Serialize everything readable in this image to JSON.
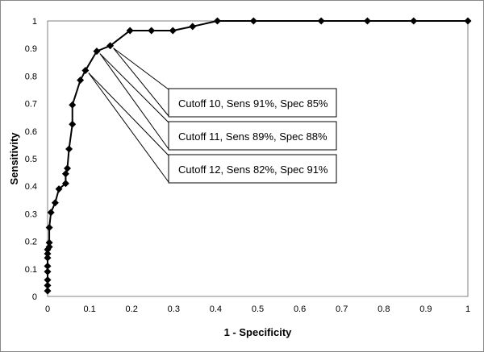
{
  "chart_data": {
    "type": "line",
    "title": "",
    "xlabel": "1 - Specificity",
    "ylabel": "Sensitivity",
    "xlim": [
      0,
      1
    ],
    "ylim": [
      0,
      1
    ],
    "x_ticks": [
      "0",
      "0.1",
      "0.2",
      "0.3",
      "0.4",
      "0.5",
      "0.6",
      "0.7",
      "0.8",
      "0.9",
      "1"
    ],
    "y_ticks": [
      "0",
      "0.1",
      "0.2",
      "0.3",
      "0.4",
      "0.5",
      "0.6",
      "0.7",
      "0.8",
      "0.9",
      "1"
    ],
    "grid": false,
    "legend": "none",
    "line_color": "#000000",
    "marker": "diamond",
    "points": [
      {
        "x": 0.0,
        "y": 0.02
      },
      {
        "x": 0.0,
        "y": 0.04
      },
      {
        "x": 0.0,
        "y": 0.06
      },
      {
        "x": 0.0,
        "y": 0.09
      },
      {
        "x": 0.0,
        "y": 0.11
      },
      {
        "x": 0.0,
        "y": 0.14
      },
      {
        "x": 0.0,
        "y": 0.155
      },
      {
        "x": 0.0,
        "y": 0.17
      },
      {
        "x": 0.004,
        "y": 0.18
      },
      {
        "x": 0.004,
        "y": 0.195
      },
      {
        "x": 0.004,
        "y": 0.25
      },
      {
        "x": 0.008,
        "y": 0.305
      },
      {
        "x": 0.018,
        "y": 0.34
      },
      {
        "x": 0.027,
        "y": 0.39
      },
      {
        "x": 0.043,
        "y": 0.41
      },
      {
        "x": 0.043,
        "y": 0.445
      },
      {
        "x": 0.047,
        "y": 0.465
      },
      {
        "x": 0.051,
        "y": 0.535
      },
      {
        "x": 0.059,
        "y": 0.625
      },
      {
        "x": 0.059,
        "y": 0.695
      },
      {
        "x": 0.078,
        "y": 0.785
      },
      {
        "x": 0.09,
        "y": 0.82
      },
      {
        "x": 0.117,
        "y": 0.89
      },
      {
        "x": 0.149,
        "y": 0.91
      },
      {
        "x": 0.196,
        "y": 0.965
      },
      {
        "x": 0.247,
        "y": 0.965
      },
      {
        "x": 0.298,
        "y": 0.965
      },
      {
        "x": 0.345,
        "y": 0.98
      },
      {
        "x": 0.404,
        "y": 1.0
      },
      {
        "x": 0.49,
        "y": 1.0
      },
      {
        "x": 0.651,
        "y": 1.0
      },
      {
        "x": 0.761,
        "y": 1.0
      },
      {
        "x": 0.871,
        "y": 1.0
      },
      {
        "x": 1.0,
        "y": 1.0
      }
    ],
    "annotations": [
      {
        "text": "Cutoff 10, Sens 91%, Spec 85%",
        "x": 0.149,
        "y": 0.91
      },
      {
        "text": "Cutoff 11, Sens 89%, Spec 88%",
        "x": 0.117,
        "y": 0.89
      },
      {
        "text": "Cutoff 12, Sens 82%, Spec 91%",
        "x": 0.09,
        "y": 0.82
      }
    ]
  }
}
